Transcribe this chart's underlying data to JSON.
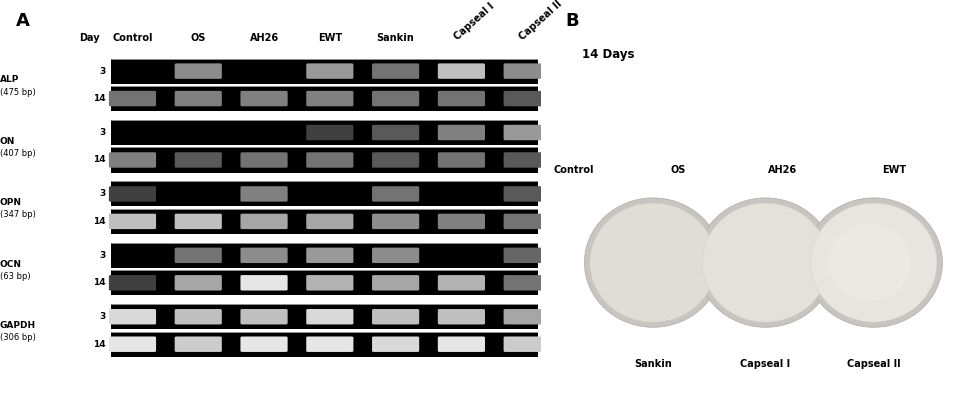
{
  "panel_A_label": "A",
  "panel_B_label": "B",
  "sample_names": [
    "Control",
    "OS",
    "AH26",
    "EWT",
    "Sankin",
    "Capseal I",
    "Capseal II"
  ],
  "rotated_names": [
    "Capseal I",
    "Capseal II"
  ],
  "gene_labels": [
    {
      "name": "ALP",
      "bp": "(475 bp)"
    },
    {
      "name": "ON",
      "bp": "(407 bp)"
    },
    {
      "name": "OPN",
      "bp": "(347 bp)"
    },
    {
      "name": "OCN",
      "bp": "(63 bp)"
    },
    {
      "name": "GAPDH",
      "bp": "(306 bp)"
    }
  ],
  "B_title": "14 Days",
  "B_top_labels": [
    "Control",
    "OS",
    "AH26",
    "EWT"
  ],
  "B_bottom_labels": [
    "Sankin",
    "Capseal I",
    "Capseal II"
  ],
  "band_brightness": {
    "ALP": {
      "3": [
        0.0,
        0.55,
        0.0,
        0.6,
        0.45,
        0.75,
        0.55
      ],
      "14": [
        0.45,
        0.5,
        0.5,
        0.5,
        0.45,
        0.45,
        0.35
      ]
    },
    "ON": {
      "3": [
        0.0,
        0.0,
        0.0,
        0.25,
        0.35,
        0.5,
        0.6
      ],
      "14": [
        0.5,
        0.35,
        0.45,
        0.45,
        0.35,
        0.45,
        0.35
      ]
    },
    "OPN": {
      "3": [
        0.25,
        0.0,
        0.5,
        0.0,
        0.45,
        0.0,
        0.35
      ],
      "14": [
        0.75,
        0.75,
        0.65,
        0.65,
        0.55,
        0.5,
        0.45
      ]
    },
    "OCN": {
      "3": [
        0.0,
        0.45,
        0.55,
        0.6,
        0.55,
        0.0,
        0.4
      ],
      "14": [
        0.25,
        0.65,
        0.9,
        0.7,
        0.65,
        0.7,
        0.45
      ]
    },
    "GAPDH": {
      "3": [
        0.85,
        0.75,
        0.75,
        0.85,
        0.75,
        0.75,
        0.65
      ],
      "14": [
        0.9,
        0.8,
        0.9,
        0.9,
        0.85,
        0.9,
        0.8
      ]
    }
  },
  "bg_color": "#ffffff",
  "label_fontsize": 6.5,
  "header_fontsize": 7.0,
  "panel_label_fontsize": 13
}
